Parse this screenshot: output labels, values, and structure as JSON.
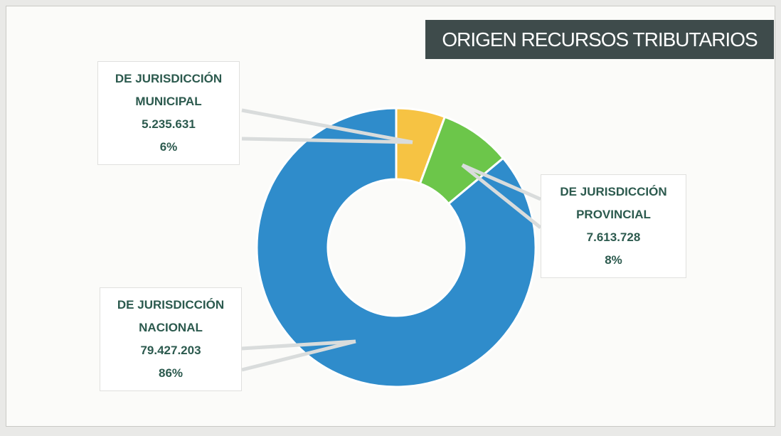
{
  "chart_data": {
    "type": "donut",
    "title": "ORIGEN RECURSOS TRIBUTARIOS",
    "categories": [
      "DE JURISDICCIÓN MUNICIPAL",
      "DE JURISDICCIÓN PROVINCIAL",
      "DE JURISDICCIÓN NACIONAL"
    ],
    "values": [
      5235631,
      7613728,
      79427203
    ],
    "value_labels": [
      "5.235.631",
      "7.613.728",
      "79.427.203"
    ],
    "percentages": [
      6,
      8,
      86
    ],
    "percentage_labels": [
      "6%",
      "8%",
      "86%"
    ],
    "colors": [
      "#f6c343",
      "#6cc64a",
      "#2f8ccb"
    ]
  }
}
